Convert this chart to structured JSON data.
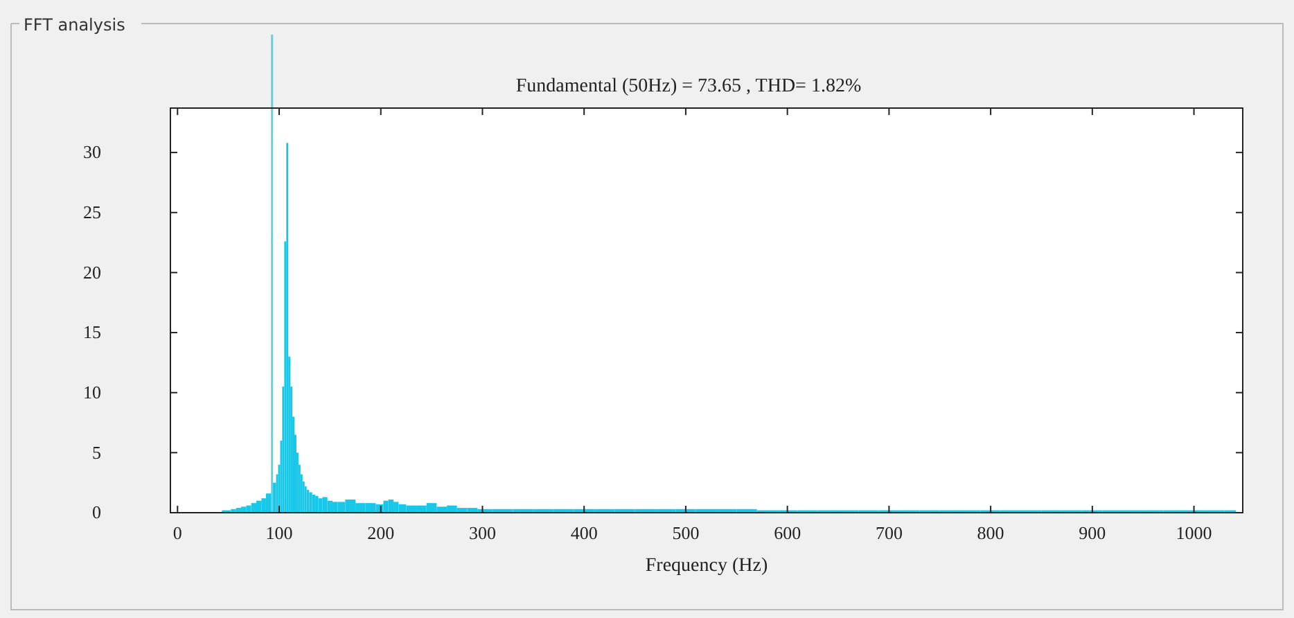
{
  "chart_data": {
    "type": "bar",
    "title": "FFT analysis",
    "subtitle": "Fundamental (50Hz) = 73.65 , THD= 1.82%",
    "xlabel": "Frequency (Hz)",
    "x": [
      45,
      50,
      55,
      60,
      65,
      70,
      75,
      80,
      85,
      89,
      96,
      98,
      100,
      102,
      104,
      106,
      108,
      110,
      112,
      114,
      116,
      118,
      120,
      122,
      124,
      126,
      128,
      131,
      134,
      137,
      140,
      145,
      150,
      155,
      160,
      170,
      180,
      190,
      200,
      205,
      210,
      215,
      220,
      230,
      240,
      250,
      260,
      270,
      280,
      290,
      300,
      320,
      340,
      360,
      380,
      400,
      420,
      440,
      460,
      480,
      500,
      520,
      540,
      560,
      580,
      600,
      620,
      640,
      660,
      680,
      700,
      720,
      740,
      760,
      780,
      800,
      820,
      840,
      860,
      880,
      900,
      920,
      940,
      960,
      980,
      1000,
      1020,
      1040
    ],
    "values": [
      0.2,
      0.2,
      0.3,
      0.4,
      0.5,
      0.6,
      0.8,
      1.0,
      1.2,
      1.6,
      2.5,
      3.2,
      4.0,
      6.0,
      10.5,
      22.6,
      30.8,
      13.0,
      10.5,
      8.0,
      6.5,
      5.0,
      4.0,
      3.2,
      2.6,
      2.2,
      1.9,
      1.7,
      1.5,
      1.4,
      1.2,
      1.3,
      1.0,
      0.9,
      0.9,
      1.1,
      0.8,
      0.8,
      0.7,
      1.0,
      1.1,
      0.9,
      0.7,
      0.6,
      0.6,
      0.8,
      0.5,
      0.6,
      0.4,
      0.4,
      0.3,
      0.3,
      0.3,
      0.3,
      0.3,
      0.3,
      0.3,
      0.3,
      0.3,
      0.3,
      0.3,
      0.3,
      0.3,
      0.3,
      0.2,
      0.2,
      0.2,
      0.2,
      0.2,
      0.2,
      0.2,
      0.2,
      0.2,
      0.2,
      0.2,
      0.2,
      0.2,
      0.2,
      0.2,
      0.2,
      0.2,
      0.2,
      0.2,
      0.2,
      0.2,
      0.2,
      0.2,
      0.2
    ],
    "color": "#19c8e8",
    "xlim": [
      -7,
      1048
    ],
    "xticks": [
      0,
      100,
      200,
      300,
      400,
      500,
      600,
      700,
      800,
      900,
      1000
    ],
    "ylim": [
      0,
      33.7
    ],
    "yticks": [
      0,
      5,
      10,
      15,
      20,
      25,
      30
    ],
    "ref_lines": [
      {
        "axis": "x",
        "value": 93,
        "color": "#5dd3e3"
      }
    ],
    "grid": false
  }
}
